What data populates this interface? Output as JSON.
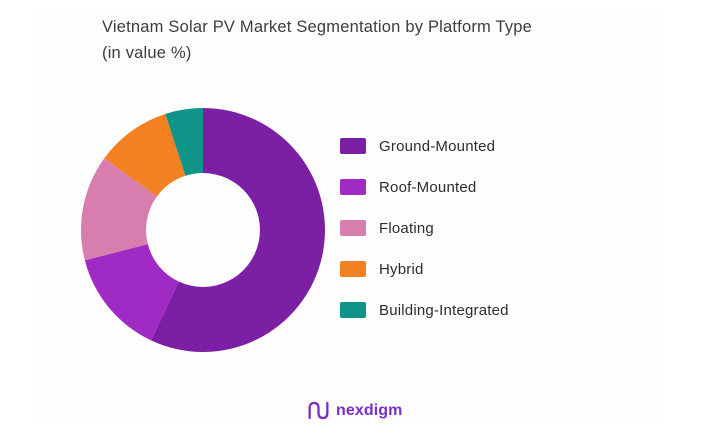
{
  "page": {
    "background": "#ffffff",
    "card_background": "#fdfdfd"
  },
  "header": {
    "title_line1": "Vietnam Solar PV Market Segmentation by Platform Type",
    "title_line2": "(in value %)"
  },
  "chart_data": {
    "type": "pie",
    "subtype": "donut",
    "title": "Vietnam Solar PV Market Segmentation by Platform Type (in value %)",
    "unit": "value %",
    "categories": [
      "Ground-Mounted",
      "Roof-Mounted",
      "Floating",
      "Hybrid",
      "Building-Integrated"
    ],
    "values": [
      57,
      14,
      14,
      10,
      5
    ],
    "colors": [
      "#7b1fa4",
      "#a02bc4",
      "#d87eae",
      "#f38121",
      "#0e9489"
    ],
    "start_angle_deg": 0,
    "direction": "clockwise",
    "inner_radius_ratio": 0.467,
    "legend_position": "right",
    "data_labels": "none"
  },
  "footer": {
    "logo_text": "nexdigm",
    "logo_color": "#7b2ec8"
  }
}
